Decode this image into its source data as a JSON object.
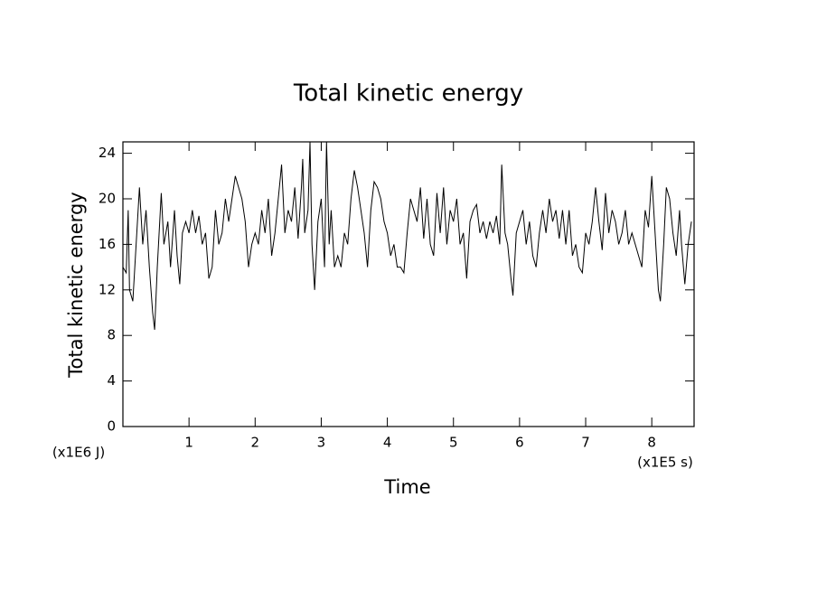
{
  "chart_data": {
    "type": "line",
    "title": "Total kinetic energy",
    "x_label": "Time",
    "y_label": "Total kinetic energy",
    "x_unit": "(x1E5 s)",
    "y_unit": "(x1E6 J)",
    "xlim": [
      0,
      8.64
    ],
    "ylim": [
      0,
      25
    ],
    "xticks": [
      1,
      2,
      3,
      4,
      5,
      6,
      7,
      8
    ],
    "yticks": [
      0,
      4,
      8,
      12,
      16,
      20,
      24
    ],
    "grid": false,
    "series": [
      {
        "name": "Total kinetic energy",
        "color": "#000000",
        "x": [
          0,
          0.05,
          0.08,
          0.1,
          0.15,
          0.2,
          0.25,
          0.3,
          0.35,
          0.4,
          0.45,
          0.48,
          0.52,
          0.58,
          0.62,
          0.68,
          0.72,
          0.78,
          0.82,
          0.86,
          0.9,
          0.95,
          1.0,
          1.05,
          1.1,
          1.15,
          1.2,
          1.25,
          1.3,
          1.35,
          1.4,
          1.45,
          1.5,
          1.55,
          1.6,
          1.65,
          1.7,
          1.75,
          1.8,
          1.85,
          1.9,
          1.95,
          2.0,
          2.05,
          2.1,
          2.15,
          2.2,
          2.25,
          2.3,
          2.35,
          2.4,
          2.45,
          2.5,
          2.55,
          2.6,
          2.65,
          2.7,
          2.72,
          2.75,
          2.8,
          2.83,
          2.86,
          2.9,
          2.95,
          3.0,
          3.05,
          3.08,
          3.12,
          3.15,
          3.2,
          3.25,
          3.3,
          3.35,
          3.4,
          3.45,
          3.5,
          3.55,
          3.6,
          3.65,
          3.7,
          3.75,
          3.8,
          3.85,
          3.9,
          3.95,
          4.0,
          4.05,
          4.1,
          4.15,
          4.2,
          4.25,
          4.3,
          4.35,
          4.4,
          4.45,
          4.5,
          4.55,
          4.6,
          4.65,
          4.7,
          4.75,
          4.8,
          4.85,
          4.9,
          4.95,
          5.0,
          5.05,
          5.1,
          5.15,
          5.2,
          5.25,
          5.3,
          5.35,
          5.4,
          5.45,
          5.5,
          5.55,
          5.6,
          5.65,
          5.7,
          5.73,
          5.78,
          5.82,
          5.87,
          5.9,
          5.95,
          6.0,
          6.05,
          6.1,
          6.15,
          6.2,
          6.25,
          6.3,
          6.35,
          6.4,
          6.45,
          6.5,
          6.55,
          6.6,
          6.65,
          6.7,
          6.75,
          6.8,
          6.85,
          6.9,
          6.95,
          7.0,
          7.05,
          7.1,
          7.15,
          7.2,
          7.25,
          7.3,
          7.35,
          7.4,
          7.45,
          7.5,
          7.55,
          7.6,
          7.65,
          7.7,
          7.75,
          7.8,
          7.85,
          7.9,
          7.95,
          8.0,
          8.05,
          8.1,
          8.13,
          8.18,
          8.22,
          8.27,
          8.32,
          8.37,
          8.42,
          8.45,
          8.5,
          8.55,
          8.6
        ],
        "values": [
          14,
          13.5,
          19,
          12,
          11,
          16,
          21,
          16,
          19,
          14,
          10,
          8.5,
          14,
          20.5,
          16,
          18,
          14,
          19,
          15,
          12.5,
          17,
          18,
          17,
          19,
          17,
          18.5,
          16,
          17,
          13,
          14,
          19,
          16,
          17,
          20,
          18,
          20,
          22,
          21,
          20,
          18,
          14,
          16,
          17,
          16,
          19,
          17,
          20,
          15,
          17,
          20,
          23,
          17,
          19,
          18,
          21,
          16.5,
          21,
          23.5,
          17,
          19,
          25,
          16,
          12,
          18,
          20,
          14,
          25,
          16,
          19,
          14,
          15,
          14,
          17,
          16,
          20,
          22.5,
          21,
          19,
          17,
          14,
          19,
          21.5,
          21,
          20,
          18,
          17,
          15,
          16,
          14,
          14,
          13.5,
          17,
          20,
          19,
          18,
          21,
          16.5,
          20,
          16,
          15,
          20.5,
          17,
          21,
          16,
          19,
          18,
          20,
          16,
          17,
          13,
          18,
          19,
          19.5,
          17,
          18,
          16.5,
          18,
          17,
          18.5,
          16,
          23,
          17,
          16,
          13,
          11.5,
          17,
          18,
          19,
          16,
          18,
          15,
          14,
          17,
          19,
          17,
          20,
          18,
          19,
          16.5,
          19,
          16,
          19,
          15,
          16,
          14,
          13.5,
          17,
          16,
          18,
          21,
          18,
          15.5,
          20.5,
          17,
          19,
          18,
          16,
          17,
          19,
          16,
          17,
          16,
          15,
          14,
          19,
          17.5,
          22,
          17,
          12,
          11,
          16,
          21,
          20,
          17,
          15,
          19,
          16,
          12.5,
          16,
          18
        ]
      }
    ]
  }
}
